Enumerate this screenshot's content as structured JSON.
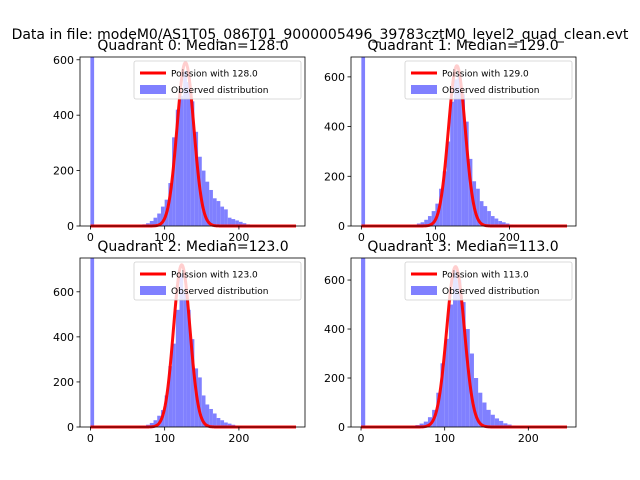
{
  "suptitle": "Data in file: modeM0/AS1T05_086T01_9000005496_39783cztM0_level2_quad_clean.evt",
  "chart_data": [
    {
      "type": "bar",
      "title": "Quadrant 0: Median=128.0",
      "xlabel": "",
      "ylabel": "",
      "xlim": [
        -14,
        289
      ],
      "ylim": [
        0,
        610
      ],
      "xticks": [
        0,
        100,
        200
      ],
      "yticks": [
        0,
        200,
        400,
        600
      ],
      "legend_position": "upper right",
      "median": 128,
      "series": [
        {
          "name": "Poission with 128.0",
          "kind": "poisson",
          "mean": 128,
          "peak": 590,
          "color": "#ff0000"
        },
        {
          "name": "Observed distribution",
          "kind": "histogram",
          "color": "#8080ff",
          "bin_width": 5,
          "bins": [
            {
              "x": 0,
              "value": 610
            },
            {
              "x": 60,
              "value": 2
            },
            {
              "x": 65,
              "value": 3
            },
            {
              "x": 70,
              "value": 6
            },
            {
              "x": 75,
              "value": 10
            },
            {
              "x": 80,
              "value": 18
            },
            {
              "x": 85,
              "value": 30
            },
            {
              "x": 90,
              "value": 45
            },
            {
              "x": 95,
              "value": 70
            },
            {
              "x": 100,
              "value": 95
            },
            {
              "x": 105,
              "value": 155
            },
            {
              "x": 110,
              "value": 320
            },
            {
              "x": 115,
              "value": 420
            },
            {
              "x": 120,
              "value": 470
            },
            {
              "x": 125,
              "value": 560
            },
            {
              "x": 130,
              "value": 520
            },
            {
              "x": 135,
              "value": 450
            },
            {
              "x": 140,
              "value": 340
            },
            {
              "x": 145,
              "value": 250
            },
            {
              "x": 150,
              "value": 200
            },
            {
              "x": 155,
              "value": 160
            },
            {
              "x": 160,
              "value": 130
            },
            {
              "x": 165,
              "value": 100
            },
            {
              "x": 170,
              "value": 90
            },
            {
              "x": 175,
              "value": 70
            },
            {
              "x": 180,
              "value": 60
            },
            {
              "x": 185,
              "value": 30
            },
            {
              "x": 190,
              "value": 25
            },
            {
              "x": 195,
              "value": 20
            },
            {
              "x": 200,
              "value": 15
            },
            {
              "x": 205,
              "value": 10
            },
            {
              "x": 210,
              "value": 6
            },
            {
              "x": 215,
              "value": 4
            },
            {
              "x": 220,
              "value": 3
            },
            {
              "x": 225,
              "value": 2
            }
          ]
        }
      ]
    },
    {
      "type": "bar",
      "title": "Quadrant 1: Median=129.0",
      "xlabel": "",
      "ylabel": "",
      "xlim": [
        -14,
        290
      ],
      "ylim": [
        0,
        680
      ],
      "xticks": [
        0,
        100,
        200
      ],
      "yticks": [
        0,
        200,
        400,
        600
      ],
      "legend_position": "upper right",
      "median": 129,
      "series": [
        {
          "name": "Poission with 129.0",
          "kind": "poisson",
          "mean": 129,
          "peak": 645,
          "color": "#ff0000"
        },
        {
          "name": "Observed distribution",
          "kind": "histogram",
          "color": "#8080ff",
          "bin_width": 5,
          "bins": [
            {
              "x": 0,
              "value": 680
            },
            {
              "x": 60,
              "value": 2
            },
            {
              "x": 65,
              "value": 4
            },
            {
              "x": 70,
              "value": 6
            },
            {
              "x": 75,
              "value": 10
            },
            {
              "x": 80,
              "value": 15
            },
            {
              "x": 85,
              "value": 25
            },
            {
              "x": 90,
              "value": 40
            },
            {
              "x": 95,
              "value": 60
            },
            {
              "x": 100,
              "value": 90
            },
            {
              "x": 105,
              "value": 150
            },
            {
              "x": 110,
              "value": 220
            },
            {
              "x": 115,
              "value": 340
            },
            {
              "x": 120,
              "value": 500
            },
            {
              "x": 125,
              "value": 590
            },
            {
              "x": 130,
              "value": 610
            },
            {
              "x": 135,
              "value": 530
            },
            {
              "x": 140,
              "value": 420
            },
            {
              "x": 145,
              "value": 270
            },
            {
              "x": 150,
              "value": 180
            },
            {
              "x": 155,
              "value": 150
            },
            {
              "x": 160,
              "value": 100
            },
            {
              "x": 165,
              "value": 80
            },
            {
              "x": 170,
              "value": 60
            },
            {
              "x": 175,
              "value": 40
            },
            {
              "x": 180,
              "value": 30
            },
            {
              "x": 185,
              "value": 20
            },
            {
              "x": 190,
              "value": 15
            },
            {
              "x": 195,
              "value": 10
            },
            {
              "x": 200,
              "value": 6
            },
            {
              "x": 205,
              "value": 4
            },
            {
              "x": 210,
              "value": 2
            }
          ]
        }
      ]
    },
    {
      "type": "bar",
      "title": "Quadrant 2: Median=123.0",
      "xlabel": "",
      "ylabel": "",
      "xlim": [
        -14,
        289
      ],
      "ylim": [
        0,
        750
      ],
      "xticks": [
        0,
        100,
        200
      ],
      "yticks": [
        0,
        200,
        400,
        600
      ],
      "legend_position": "upper right",
      "median": 123,
      "series": [
        {
          "name": "Poission with 123.0",
          "kind": "poisson",
          "mean": 123,
          "peak": 720,
          "color": "#ff0000"
        },
        {
          "name": "Observed distribution",
          "kind": "histogram",
          "color": "#8080ff",
          "bin_width": 5,
          "bins": [
            {
              "x": 0,
              "value": 750
            },
            {
              "x": 60,
              "value": 2
            },
            {
              "x": 65,
              "value": 4
            },
            {
              "x": 70,
              "value": 6
            },
            {
              "x": 75,
              "value": 10
            },
            {
              "x": 80,
              "value": 18
            },
            {
              "x": 85,
              "value": 30
            },
            {
              "x": 90,
              "value": 50
            },
            {
              "x": 95,
              "value": 75
            },
            {
              "x": 100,
              "value": 140
            },
            {
              "x": 105,
              "value": 270
            },
            {
              "x": 110,
              "value": 370
            },
            {
              "x": 115,
              "value": 520
            },
            {
              "x": 120,
              "value": 680
            },
            {
              "x": 125,
              "value": 600
            },
            {
              "x": 130,
              "value": 520
            },
            {
              "x": 135,
              "value": 390
            },
            {
              "x": 140,
              "value": 260
            },
            {
              "x": 145,
              "value": 220
            },
            {
              "x": 150,
              "value": 140
            },
            {
              "x": 155,
              "value": 100
            },
            {
              "x": 160,
              "value": 80
            },
            {
              "x": 165,
              "value": 60
            },
            {
              "x": 170,
              "value": 40
            },
            {
              "x": 175,
              "value": 30
            },
            {
              "x": 180,
              "value": 20
            },
            {
              "x": 185,
              "value": 15
            },
            {
              "x": 190,
              "value": 10
            },
            {
              "x": 195,
              "value": 6
            },
            {
              "x": 200,
              "value": 4
            },
            {
              "x": 205,
              "value": 2
            }
          ]
        }
      ]
    },
    {
      "type": "bar",
      "title": "Quadrant 3: Median=113.0",
      "xlabel": "",
      "ylabel": "",
      "xlim": [
        -12,
        257
      ],
      "ylim": [
        0,
        690
      ],
      "xticks": [
        0,
        100,
        200
      ],
      "yticks": [
        0,
        200,
        400,
        600
      ],
      "legend_position": "upper right",
      "median": 113,
      "series": [
        {
          "name": "Poission with 113.0",
          "kind": "poisson",
          "mean": 113,
          "peak": 655,
          "color": "#ff0000"
        },
        {
          "name": "Observed distribution",
          "kind": "histogram",
          "color": "#8080ff",
          "bin_width": 5,
          "bins": [
            {
              "x": 0,
              "value": 690
            },
            {
              "x": 50,
              "value": 2
            },
            {
              "x": 55,
              "value": 3
            },
            {
              "x": 60,
              "value": 5
            },
            {
              "x": 65,
              "value": 8
            },
            {
              "x": 70,
              "value": 14
            },
            {
              "x": 75,
              "value": 22
            },
            {
              "x": 80,
              "value": 40
            },
            {
              "x": 85,
              "value": 70
            },
            {
              "x": 90,
              "value": 140
            },
            {
              "x": 95,
              "value": 260
            },
            {
              "x": 100,
              "value": 360
            },
            {
              "x": 105,
              "value": 500
            },
            {
              "x": 110,
              "value": 640
            },
            {
              "x": 115,
              "value": 600
            },
            {
              "x": 120,
              "value": 510
            },
            {
              "x": 125,
              "value": 400
            },
            {
              "x": 130,
              "value": 300
            },
            {
              "x": 135,
              "value": 200
            },
            {
              "x": 140,
              "value": 140
            },
            {
              "x": 145,
              "value": 100
            },
            {
              "x": 150,
              "value": 70
            },
            {
              "x": 155,
              "value": 50
            },
            {
              "x": 160,
              "value": 35
            },
            {
              "x": 165,
              "value": 25
            },
            {
              "x": 170,
              "value": 15
            },
            {
              "x": 175,
              "value": 10
            },
            {
              "x": 180,
              "value": 6
            },
            {
              "x": 185,
              "value": 4
            },
            {
              "x": 190,
              "value": 2
            }
          ]
        }
      ]
    }
  ]
}
